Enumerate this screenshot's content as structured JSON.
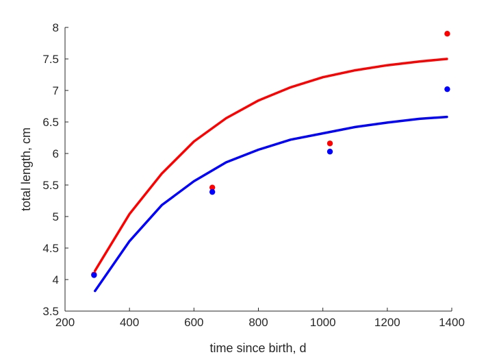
{
  "chart_data": {
    "type": "line",
    "title": "",
    "xlabel": "time since birth, d",
    "ylabel": "total length, cm",
    "xlim": [
      200,
      1400
    ],
    "ylim": [
      3.5,
      8
    ],
    "xticks": [
      200,
      400,
      600,
      800,
      1000,
      1200,
      1400
    ],
    "yticks": [
      3.5,
      4,
      4.5,
      5,
      5.5,
      6,
      6.5,
      7,
      7.5,
      8
    ],
    "grid": false,
    "series": [
      {
        "name": "red",
        "color": "#ff0000",
        "points": {
          "x": [
            290,
            657,
            1022,
            1386
          ],
          "y": [
            4.08,
            5.46,
            6.16,
            7.9
          ]
        },
        "curve": {
          "x": [
            293,
            400,
            500,
            600,
            700,
            800,
            900,
            1000,
            1100,
            1200,
            1300,
            1385
          ],
          "y": [
            4.14,
            5.04,
            5.68,
            6.19,
            6.56,
            6.84,
            7.05,
            7.21,
            7.32,
            7.4,
            7.46,
            7.5
          ]
        }
      },
      {
        "name": "blue",
        "color": "#0000ff",
        "points": {
          "x": [
            290,
            657,
            1022,
            1386
          ],
          "y": [
            4.07,
            5.39,
            6.03,
            7.02
          ]
        },
        "curve": {
          "x": [
            293,
            400,
            500,
            600,
            700,
            800,
            900,
            1000,
            1100,
            1200,
            1300,
            1385
          ],
          "y": [
            3.82,
            4.61,
            5.18,
            5.56,
            5.86,
            6.06,
            6.22,
            6.32,
            6.42,
            6.49,
            6.55,
            6.58
          ]
        }
      }
    ]
  }
}
